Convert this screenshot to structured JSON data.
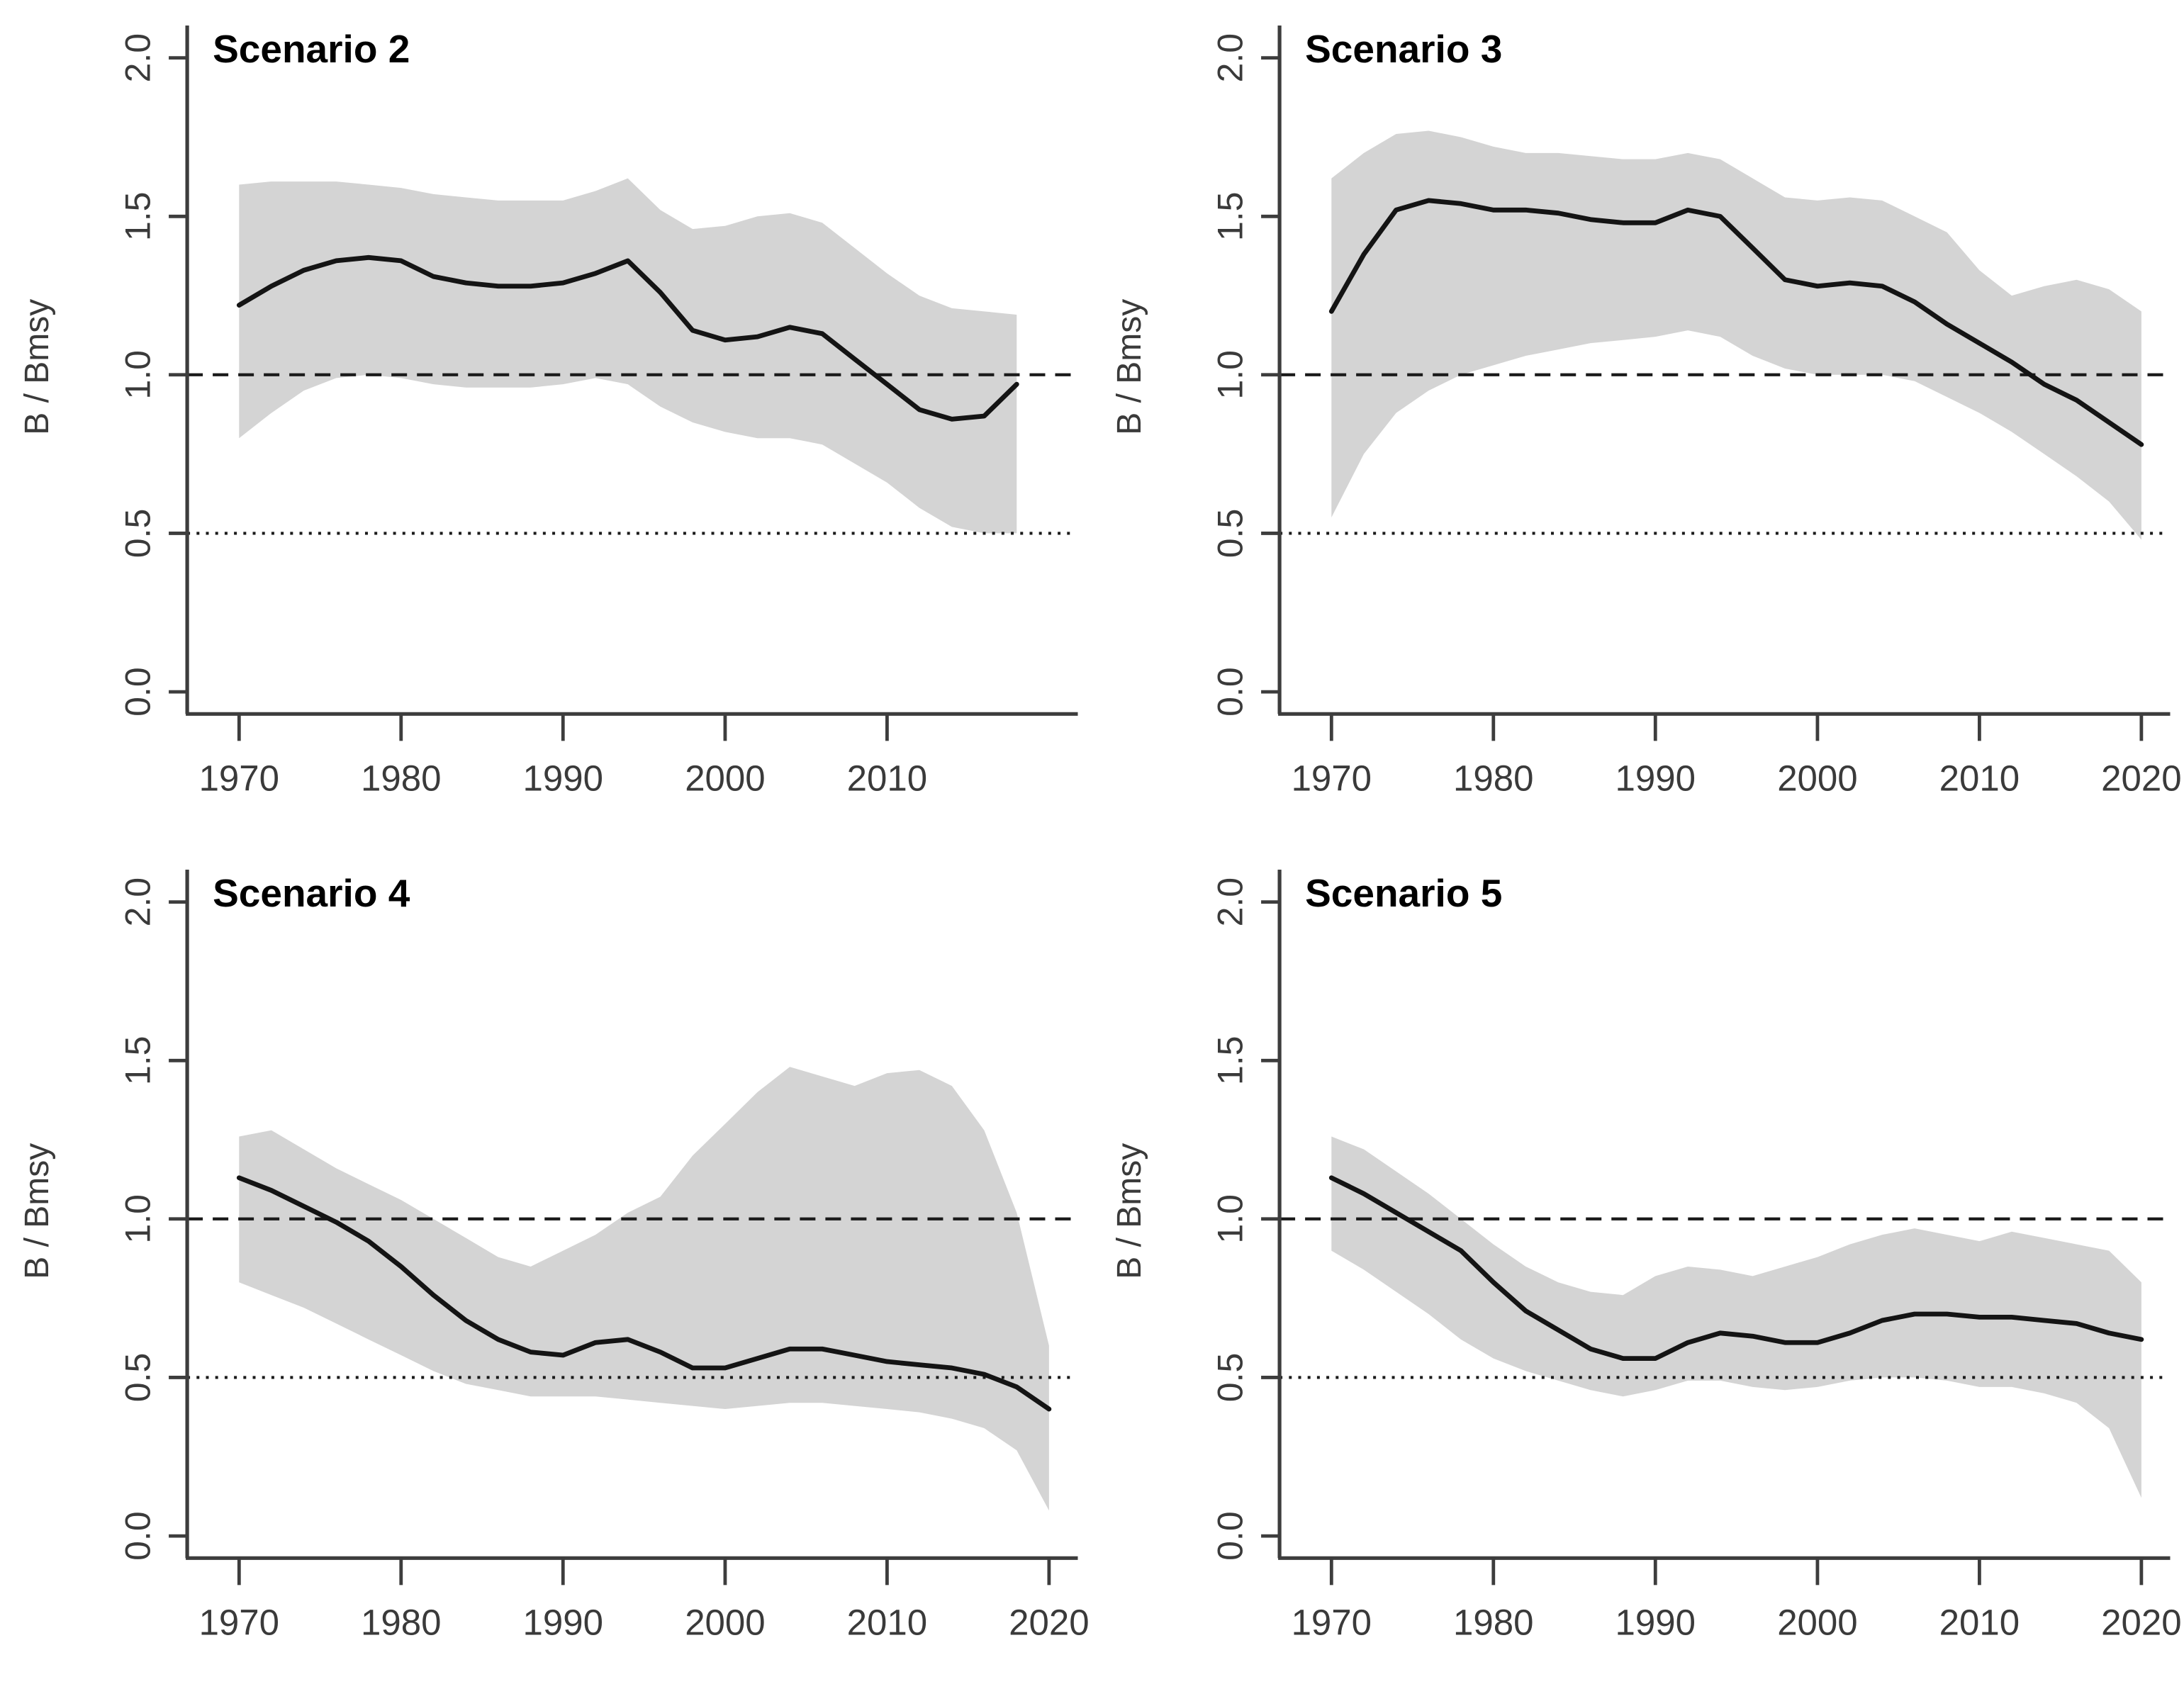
{
  "page": {
    "background": "#ffffff"
  },
  "colors": {
    "band": "#d4d4d4",
    "median": "#141414",
    "axis": "#3d3d3d",
    "tick_label": "#3a3a3a",
    "reference": "#1a1a1a",
    "title": "#000000"
  },
  "chart_data": [
    {
      "type": "line",
      "title": "Scenario 2",
      "xlabel": "",
      "ylabel": "B / Bmsy",
      "xlim": [
        1966.8,
        2021.6
      ],
      "ylim": [
        -0.07,
        2.12
      ],
      "x_ticks": [
        1970,
        1980,
        1990,
        2000,
        2010
      ],
      "y_ticks": [
        0,
        0.5,
        1,
        1.5,
        2
      ],
      "y_tick_labels": [
        "0.0",
        "0.5",
        "1.0",
        "1.5",
        "2.0"
      ],
      "grid": "off",
      "legend": "none",
      "reference_lines": [
        {
          "y": 1.0,
          "style": "dashed"
        },
        {
          "y": 0.5,
          "style": "dotted"
        }
      ],
      "x": [
        1970,
        1972,
        1974,
        1976,
        1978,
        1980,
        1982,
        1984,
        1986,
        1988,
        1990,
        1992,
        1994,
        1996,
        1998,
        2000,
        2002,
        2004,
        2006,
        2008,
        2010,
        2012,
        2014,
        2016,
        2018
      ],
      "series": [
        {
          "name": "median",
          "values": [
            1.22,
            1.28,
            1.33,
            1.36,
            1.37,
            1.36,
            1.31,
            1.29,
            1.28,
            1.28,
            1.29,
            1.32,
            1.36,
            1.26,
            1.14,
            1.11,
            1.12,
            1.15,
            1.13,
            1.05,
            0.97,
            0.89,
            0.86,
            0.87,
            0.97
          ]
        },
        {
          "name": "ci_lower",
          "values": [
            0.8,
            0.88,
            0.95,
            0.99,
            1.0,
            0.99,
            0.97,
            0.96,
            0.96,
            0.96,
            0.97,
            0.99,
            0.97,
            0.9,
            0.85,
            0.82,
            0.8,
            0.8,
            0.78,
            0.72,
            0.66,
            0.58,
            0.52,
            0.5,
            0.5
          ]
        },
        {
          "name": "ci_upper",
          "values": [
            1.6,
            1.61,
            1.61,
            1.61,
            1.6,
            1.59,
            1.57,
            1.56,
            1.55,
            1.55,
            1.55,
            1.58,
            1.62,
            1.52,
            1.46,
            1.47,
            1.5,
            1.51,
            1.48,
            1.4,
            1.32,
            1.25,
            1.21,
            1.2,
            1.19
          ]
        }
      ]
    },
    {
      "type": "line",
      "title": "Scenario 3",
      "xlabel": "",
      "ylabel": "B / Bmsy",
      "xlim": [
        1966.8,
        2021.6
      ],
      "ylim": [
        -0.07,
        2.12
      ],
      "x_ticks": [
        1970,
        1980,
        1990,
        2000,
        2010,
        2020
      ],
      "y_ticks": [
        0,
        0.5,
        1,
        1.5,
        2
      ],
      "y_tick_labels": [
        "0.0",
        "0.5",
        "1.0",
        "1.5",
        "2.0"
      ],
      "grid": "off",
      "legend": "none",
      "reference_lines": [
        {
          "y": 1.0,
          "style": "dashed"
        },
        {
          "y": 0.5,
          "style": "dotted"
        }
      ],
      "x": [
        1970,
        1972,
        1974,
        1976,
        1978,
        1980,
        1982,
        1984,
        1986,
        1988,
        1990,
        1992,
        1994,
        1996,
        1998,
        2000,
        2002,
        2004,
        2006,
        2008,
        2010,
        2012,
        2014,
        2016,
        2018,
        2020
      ],
      "series": [
        {
          "name": "median",
          "values": [
            1.2,
            1.38,
            1.52,
            1.55,
            1.54,
            1.52,
            1.52,
            1.51,
            1.49,
            1.48,
            1.48,
            1.52,
            1.5,
            1.4,
            1.3,
            1.28,
            1.29,
            1.28,
            1.23,
            1.16,
            1.1,
            1.04,
            0.97,
            0.92,
            0.85,
            0.78
          ]
        },
        {
          "name": "ci_lower",
          "values": [
            0.55,
            0.75,
            0.88,
            0.95,
            1.0,
            1.03,
            1.06,
            1.08,
            1.1,
            1.11,
            1.12,
            1.14,
            1.12,
            1.06,
            1.02,
            1.0,
            1.0,
            1.0,
            0.98,
            0.93,
            0.88,
            0.82,
            0.75,
            0.68,
            0.6,
            0.48
          ]
        },
        {
          "name": "ci_upper",
          "values": [
            1.62,
            1.7,
            1.76,
            1.77,
            1.75,
            1.72,
            1.7,
            1.7,
            1.69,
            1.68,
            1.68,
            1.7,
            1.68,
            1.62,
            1.56,
            1.55,
            1.56,
            1.55,
            1.5,
            1.45,
            1.33,
            1.25,
            1.28,
            1.3,
            1.27,
            1.2
          ]
        }
      ]
    },
    {
      "type": "line",
      "title": "Scenario 4",
      "xlabel": "",
      "ylabel": "B / Bmsy",
      "xlim": [
        1966.8,
        2021.6
      ],
      "ylim": [
        -0.07,
        2.12
      ],
      "x_ticks": [
        1970,
        1980,
        1990,
        2000,
        2010,
        2020
      ],
      "y_ticks": [
        0,
        0.5,
        1,
        1.5,
        2
      ],
      "y_tick_labels": [
        "0.0",
        "0.5",
        "1.0",
        "1.5",
        "2.0"
      ],
      "grid": "off",
      "legend": "none",
      "reference_lines": [
        {
          "y": 1.0,
          "style": "dashed"
        },
        {
          "y": 0.5,
          "style": "dotted"
        }
      ],
      "x": [
        1970,
        1972,
        1974,
        1976,
        1978,
        1980,
        1982,
        1984,
        1986,
        1988,
        1990,
        1992,
        1994,
        1996,
        1998,
        2000,
        2002,
        2004,
        2006,
        2008,
        2010,
        2012,
        2014,
        2016,
        2018,
        2020
      ],
      "series": [
        {
          "name": "median",
          "values": [
            1.13,
            1.09,
            1.04,
            0.99,
            0.93,
            0.85,
            0.76,
            0.68,
            0.62,
            0.58,
            0.57,
            0.61,
            0.62,
            0.58,
            0.53,
            0.53,
            0.56,
            0.59,
            0.59,
            0.57,
            0.55,
            0.54,
            0.53,
            0.51,
            0.47,
            0.4
          ]
        },
        {
          "name": "ci_lower",
          "values": [
            0.8,
            0.76,
            0.72,
            0.67,
            0.62,
            0.57,
            0.52,
            0.48,
            0.46,
            0.44,
            0.44,
            0.44,
            0.43,
            0.42,
            0.41,
            0.4,
            0.41,
            0.42,
            0.42,
            0.41,
            0.4,
            0.39,
            0.37,
            0.34,
            0.27,
            0.08
          ]
        },
        {
          "name": "ci_upper",
          "values": [
            1.26,
            1.28,
            1.22,
            1.16,
            1.11,
            1.06,
            1.0,
            0.94,
            0.88,
            0.85,
            0.9,
            0.95,
            1.02,
            1.07,
            1.2,
            1.3,
            1.4,
            1.48,
            1.45,
            1.42,
            1.46,
            1.47,
            1.42,
            1.28,
            1.02,
            0.6
          ]
        }
      ]
    },
    {
      "type": "line",
      "title": "Scenario 5",
      "xlabel": "",
      "ylabel": "B / Bmsy",
      "xlim": [
        1966.8,
        2021.6
      ],
      "ylim": [
        -0.07,
        2.12
      ],
      "x_ticks": [
        1970,
        1980,
        1990,
        2000,
        2010,
        2020
      ],
      "y_ticks": [
        0,
        0.5,
        1,
        1.5,
        2
      ],
      "y_tick_labels": [
        "0.0",
        "0.5",
        "1.0",
        "1.5",
        "2.0"
      ],
      "grid": "off",
      "legend": "none",
      "reference_lines": [
        {
          "y": 1.0,
          "style": "dashed"
        },
        {
          "y": 0.5,
          "style": "dotted"
        }
      ],
      "x": [
        1970,
        1972,
        1974,
        1976,
        1978,
        1980,
        1982,
        1984,
        1986,
        1988,
        1990,
        1992,
        1994,
        1996,
        1998,
        2000,
        2002,
        2004,
        2006,
        2008,
        2010,
        2012,
        2014,
        2016,
        2018,
        2020
      ],
      "series": [
        {
          "name": "median",
          "values": [
            1.13,
            1.08,
            1.02,
            0.96,
            0.9,
            0.8,
            0.71,
            0.65,
            0.59,
            0.56,
            0.56,
            0.61,
            0.64,
            0.63,
            0.61,
            0.61,
            0.64,
            0.68,
            0.7,
            0.7,
            0.69,
            0.69,
            0.68,
            0.67,
            0.64,
            0.62
          ]
        },
        {
          "name": "ci_lower",
          "values": [
            0.9,
            0.84,
            0.77,
            0.7,
            0.62,
            0.56,
            0.52,
            0.49,
            0.46,
            0.44,
            0.46,
            0.49,
            0.49,
            0.47,
            0.46,
            0.47,
            0.49,
            0.5,
            0.5,
            0.49,
            0.47,
            0.47,
            0.45,
            0.42,
            0.34,
            0.12
          ]
        },
        {
          "name": "ci_upper",
          "values": [
            1.26,
            1.22,
            1.15,
            1.08,
            1.0,
            0.92,
            0.85,
            0.8,
            0.77,
            0.76,
            0.82,
            0.85,
            0.84,
            0.82,
            0.85,
            0.88,
            0.92,
            0.95,
            0.97,
            0.95,
            0.93,
            0.96,
            0.94,
            0.92,
            0.9,
            0.8
          ]
        }
      ]
    }
  ]
}
